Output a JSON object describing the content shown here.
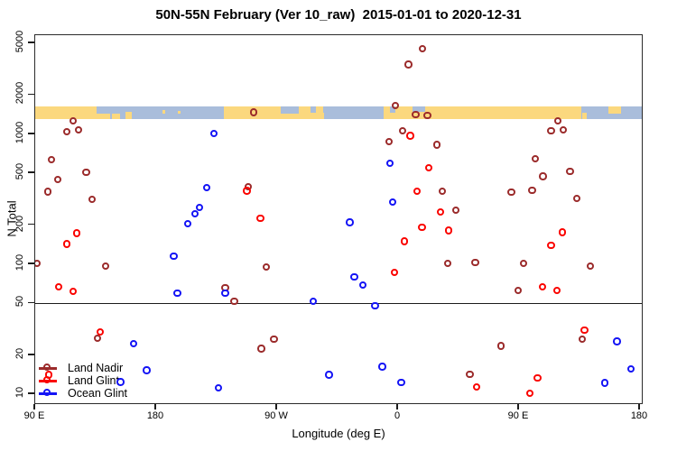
{
  "title": "50N-55N February (Ver 10_raw)  2015-01-01 to 2020-12-31",
  "axes": {
    "x_label": "Longitude (deg E)",
    "y_label": "N Total",
    "x_ticks": [
      {
        "pos": 90,
        "label": "90 E"
      },
      {
        "pos": 180,
        "label": "180"
      },
      {
        "pos": 270,
        "label": "90 W"
      },
      {
        "pos": 360,
        "label": "0"
      },
      {
        "pos": 450,
        "label": "90 E"
      },
      {
        "pos": 540,
        "label": "180"
      }
    ],
    "y_ticks": [
      {
        "value": 5000,
        "label": "5000"
      },
      {
        "value": 2000,
        "label": "2000"
      },
      {
        "value": 1000,
        "label": "1000"
      },
      {
        "value": 500,
        "label": "500"
      },
      {
        "value": 200,
        "label": "200"
      },
      {
        "value": 100,
        "label": "100"
      },
      {
        "value": 50,
        "label": "50"
      },
      {
        "value": 20,
        "label": "20"
      },
      {
        "value": 10,
        "label": "10"
      }
    ],
    "reference_line_value": 50
  },
  "legend": {
    "items": [
      {
        "label": "Land Nadir",
        "color": "#9B2B2B"
      },
      {
        "label": "Land Glint",
        "color": "#FA0400"
      },
      {
        "label": "Ocean Glint",
        "color": "#1414F5"
      }
    ]
  },
  "chart_data": {
    "type": "scatter",
    "title": "50N-55N February (Ver 10_raw)  2015-01-01 to 2020-12-31",
    "xlabel": "Longitude (deg E)",
    "ylabel": "N Total",
    "y_scale": "log10",
    "x_axis_note": "longitude axis runs 90E → 180 → 90W → 0 → 90E → 180 (values beyond 180 wrap westward/second cycle)",
    "x_range": [
      90,
      542.7
    ],
    "y_range": [
      8.3,
      5780
    ],
    "grid": false,
    "legend_position": "bottom-left inside plot",
    "series": [
      {
        "name": "Land Nadir",
        "color": "#9B2B2B",
        "points": [
          [
            118.9,
            1250
          ],
          [
            114.0,
            1030
          ],
          [
            122.7,
            1060
          ],
          [
            102.8,
            630
          ],
          [
            128.5,
            500
          ],
          [
            107.3,
            444
          ],
          [
            99.9,
            357
          ],
          [
            132.8,
            310
          ],
          [
            91.8,
            100
          ],
          [
            143.1,
            95
          ],
          [
            137.0,
            26.5
          ],
          [
            253.0,
            1450
          ],
          [
            249.2,
            390
          ],
          [
            268.2,
            26.1
          ],
          [
            258.8,
            22.1
          ],
          [
            262.6,
            94
          ],
          [
            231.9,
            65
          ],
          [
            238.6,
            51
          ],
          [
            358.5,
            1640
          ],
          [
            373.7,
            1390
          ],
          [
            382.4,
            1370
          ],
          [
            364.1,
            1050
          ],
          [
            354.0,
            863
          ],
          [
            378.8,
            4490
          ],
          [
            368.3,
            3390
          ],
          [
            389.6,
            820
          ],
          [
            393.6,
            360
          ],
          [
            403.7,
            256
          ],
          [
            462.8,
            640
          ],
          [
            474.4,
            1050
          ],
          [
            479.6,
            1250
          ],
          [
            483.4,
            1060
          ],
          [
            488.5,
            512
          ],
          [
            468.4,
            468
          ],
          [
            444.8,
            353
          ],
          [
            460.3,
            364
          ],
          [
            493.5,
            315
          ],
          [
            503.5,
            95
          ],
          [
            453.9,
            100
          ],
          [
            418.0,
            102
          ],
          [
            397.7,
            100
          ],
          [
            437.0,
            23.3
          ],
          [
            413.9,
            14
          ],
          [
            497.7,
            26.3
          ],
          [
            449.8,
            62
          ]
        ]
      },
      {
        "name": "Land Glint",
        "color": "#FA0400",
        "points": [
          [
            121.6,
            171
          ],
          [
            114.2,
            141
          ],
          [
            107.9,
            66
          ],
          [
            118.7,
            61
          ],
          [
            138.8,
            29.8
          ],
          [
            100.7,
            13.9
          ],
          [
            248.1,
            361
          ],
          [
            258.1,
            222
          ],
          [
            358.0,
            85
          ],
          [
            378.4,
            190
          ],
          [
            365.2,
            148
          ],
          [
            369.7,
            960
          ],
          [
            374.6,
            358
          ],
          [
            383.5,
            546
          ],
          [
            392.2,
            248
          ],
          [
            398.3,
            179
          ],
          [
            418.9,
            11.2
          ],
          [
            464.3,
            13.2
          ],
          [
            458.7,
            10
          ],
          [
            468.2,
            66
          ],
          [
            478.9,
            62
          ],
          [
            474.4,
            138
          ],
          [
            482.7,
            174
          ],
          [
            499.3,
            30.8
          ]
        ]
      },
      {
        "name": "Ocean Glint",
        "color": "#1414F5",
        "points": [
          [
            223.7,
            1000
          ],
          [
            218.3,
            383
          ],
          [
            212.9,
            270
          ],
          [
            209.6,
            240
          ],
          [
            204.2,
            203
          ],
          [
            193.7,
            114
          ],
          [
            196.3,
            59
          ],
          [
            231.9,
            59
          ],
          [
            163.9,
            24.1
          ],
          [
            173.5,
            15.1
          ],
          [
            154.2,
            12.3
          ],
          [
            227.0,
            11.1
          ],
          [
            297.3,
            51
          ],
          [
            309.2,
            13.9
          ],
          [
            324.6,
            207
          ],
          [
            328.0,
            79
          ],
          [
            334.3,
            68
          ],
          [
            343.4,
            47.4
          ],
          [
            348.9,
            16.1
          ],
          [
            354.4,
            591
          ],
          [
            356.7,
            297
          ],
          [
            363.0,
            12.2
          ],
          [
            514.3,
            12.1
          ],
          [
            523.5,
            25.2
          ],
          [
            533.8,
            15.4
          ]
        ]
      }
    ],
    "map_strip": {
      "description": "thin world-map band (50N-55N) drawn across the plot near N=1400",
      "land_color": "#FBD87E",
      "ocean_color": "#A9BDDB",
      "ocean_segments": [
        {
          "from": 136.0,
          "to": 146.0,
          "top": 0.0,
          "frac": 0.55
        },
        {
          "from": 146.0,
          "to": 230.5,
          "top": 0.0,
          "frac": 1.0
        },
        {
          "from": 272.5,
          "to": 286.0,
          "top": 0.0,
          "frac": 0.6
        },
        {
          "from": 295.0,
          "to": 299.0,
          "top": 0.0,
          "frac": 0.5
        },
        {
          "from": 304.0,
          "to": 349.3,
          "top": 0.0,
          "frac": 1.0
        },
        {
          "from": 354.0,
          "to": 358.0,
          "top": 0.0,
          "frac": 0.5
        },
        {
          "from": 371.0,
          "to": 380.0,
          "top": 0.0,
          "frac": 0.42
        },
        {
          "from": 496.5,
          "to": 542.7,
          "top": 0.0,
          "frac": 1.0
        }
      ],
      "land_patches": [
        {
          "from": 157.0,
          "to": 162.0,
          "top": 0.45,
          "frac": 0.55
        },
        {
          "from": 147.0,
          "to": 153.0,
          "top": 0.6,
          "frac": 0.4
        },
        {
          "from": 185.0,
          "to": 187.0,
          "top": 0.3,
          "frac": 0.25
        },
        {
          "from": 196.0,
          "to": 198.0,
          "top": 0.35,
          "frac": 0.25
        },
        {
          "from": 301.0,
          "to": 304.8,
          "top": 0.5,
          "frac": 0.5
        },
        {
          "from": 349.3,
          "to": 354.0,
          "top": 0.2,
          "frac": 0.8
        },
        {
          "from": 497.0,
          "to": 500.5,
          "top": 0.5,
          "frac": 0.5
        },
        {
          "from": 516.5,
          "to": 526.0,
          "top": 0.0,
          "frac": 0.6
        }
      ]
    }
  }
}
